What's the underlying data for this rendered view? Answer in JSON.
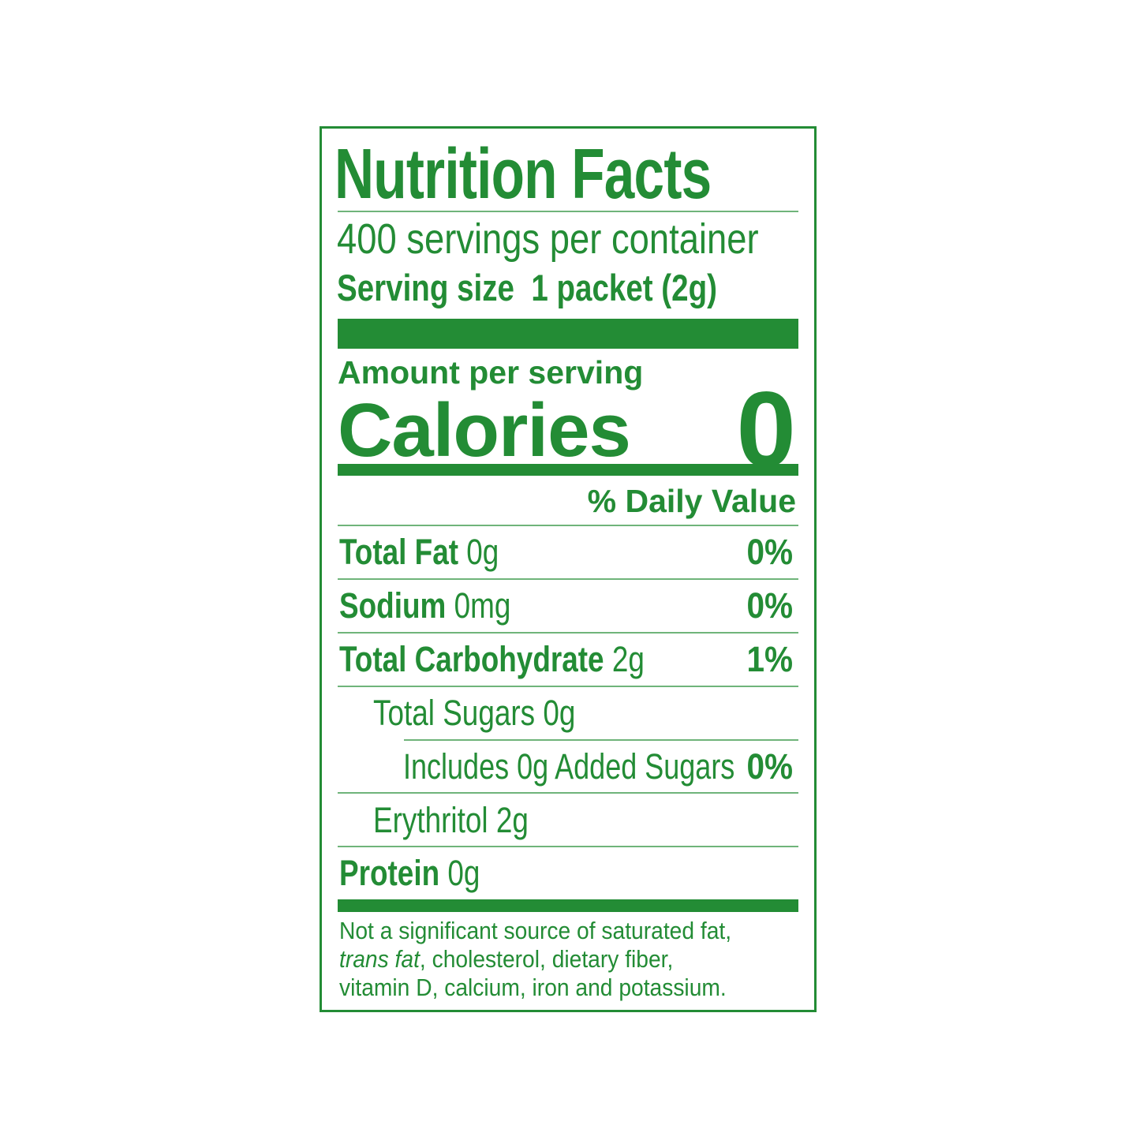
{
  "label": {
    "title": "Nutrition Facts",
    "servings_per_container": "400 servings per container",
    "serving_size_label": "Serving size",
    "serving_size_value": "1 packet (2g)",
    "amount_per_serving": "Amount per serving",
    "calories_label": "Calories",
    "calories_value": "0",
    "daily_value_header": "% Daily Value",
    "nutrients": [
      {
        "name": "Total Fat",
        "amount": "0g",
        "dv": "0%"
      },
      {
        "name": "Sodium",
        "amount": "0mg",
        "dv": "0%"
      },
      {
        "name": "Total Carbohydrate",
        "amount": "2g",
        "dv": "1%"
      },
      {
        "name": "Total Sugars 0g"
      },
      {
        "name": "Includes 0g Added Sugars",
        "dv": "0%"
      },
      {
        "name": "Erythritol 2g"
      },
      {
        "name": "Protein",
        "amount": "0g"
      }
    ],
    "footnote": {
      "line1": "Not a significant source of saturated fat,",
      "italic": "trans fat",
      "line2_rest": ", cholesterol, dietary fiber,",
      "line3": "vitamin D, calcium, iron and potassium."
    }
  },
  "colors": {
    "label_green": "#238c35",
    "background": "#ffffff"
  }
}
